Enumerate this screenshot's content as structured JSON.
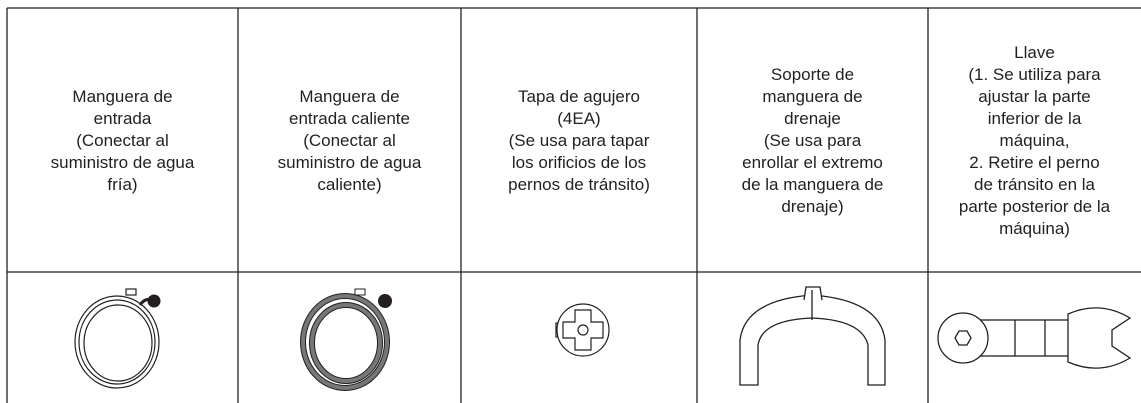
{
  "table": {
    "rows": [
      [
        [
          "Manguera de",
          "entrada",
          "(Conectar al",
          "suministro de agua",
          "fría)"
        ],
        [
          "Manguera de",
          "entrada caliente",
          "(Conectar al",
          "suministro de agua",
          "caliente)"
        ],
        [
          "Tapa de agujero",
          "(4EA)",
          "(Se usa para tapar",
          "los orificios de los",
          "pernos de tránsito)"
        ],
        [
          "Soporte de",
          "manguera de",
          "drenaje",
          "(Se usa para",
          "enrollar el extremo",
          "de la manguera de",
          "drenaje)"
        ],
        [
          "Llave",
          "(1. Se utiliza para",
          "ajustar la parte",
          "inferior de la",
          "máquina,",
          "2. Retire el perno",
          "de tránsito en la",
          "parte posterior de la",
          "máquina)"
        ]
      ]
    ]
  }
}
